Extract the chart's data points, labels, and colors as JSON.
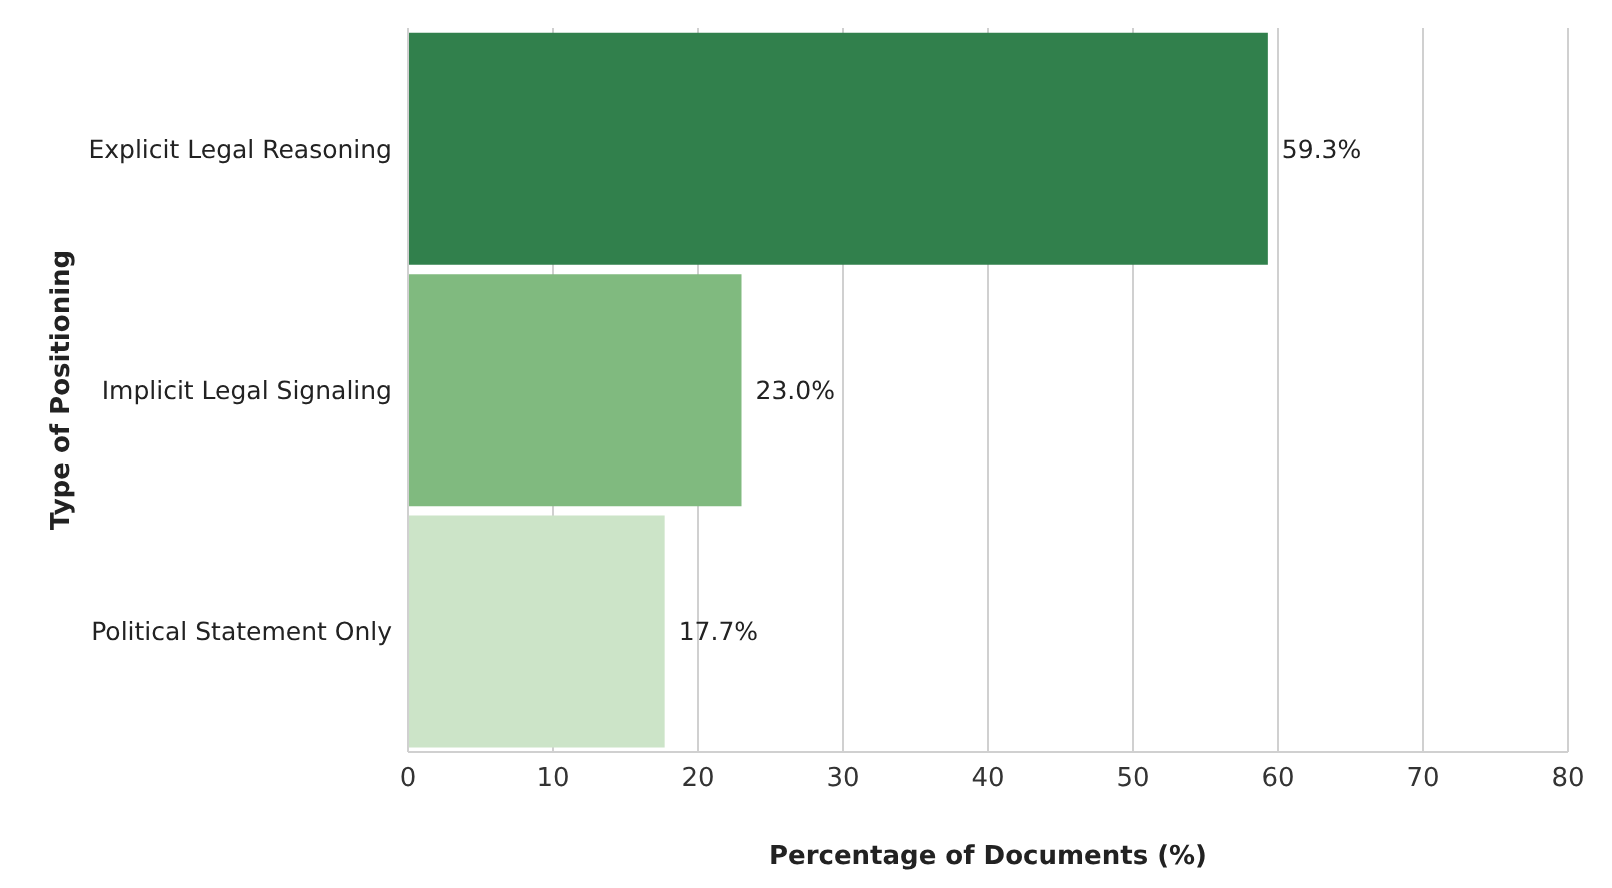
{
  "chart_data": {
    "type": "bar",
    "orientation": "horizontal",
    "xlabel": "Percentage of Documents (%)",
    "ylabel": "Type of Positioning",
    "categories": [
      "Explicit Legal Reasoning",
      "Implicit Legal Signaling",
      "Political Statement Only"
    ],
    "values": [
      59.3,
      23.0,
      17.7
    ],
    "colors": [
      "#31804c",
      "#80ba7f",
      "#cce4c8"
    ],
    "value_labels": [
      "59.3%",
      "23.0%",
      "17.7%"
    ],
    "xlim": [
      0,
      80
    ],
    "xticks": [
      0,
      10,
      20,
      30,
      40,
      50,
      60,
      70,
      80
    ],
    "grid": "x"
  }
}
